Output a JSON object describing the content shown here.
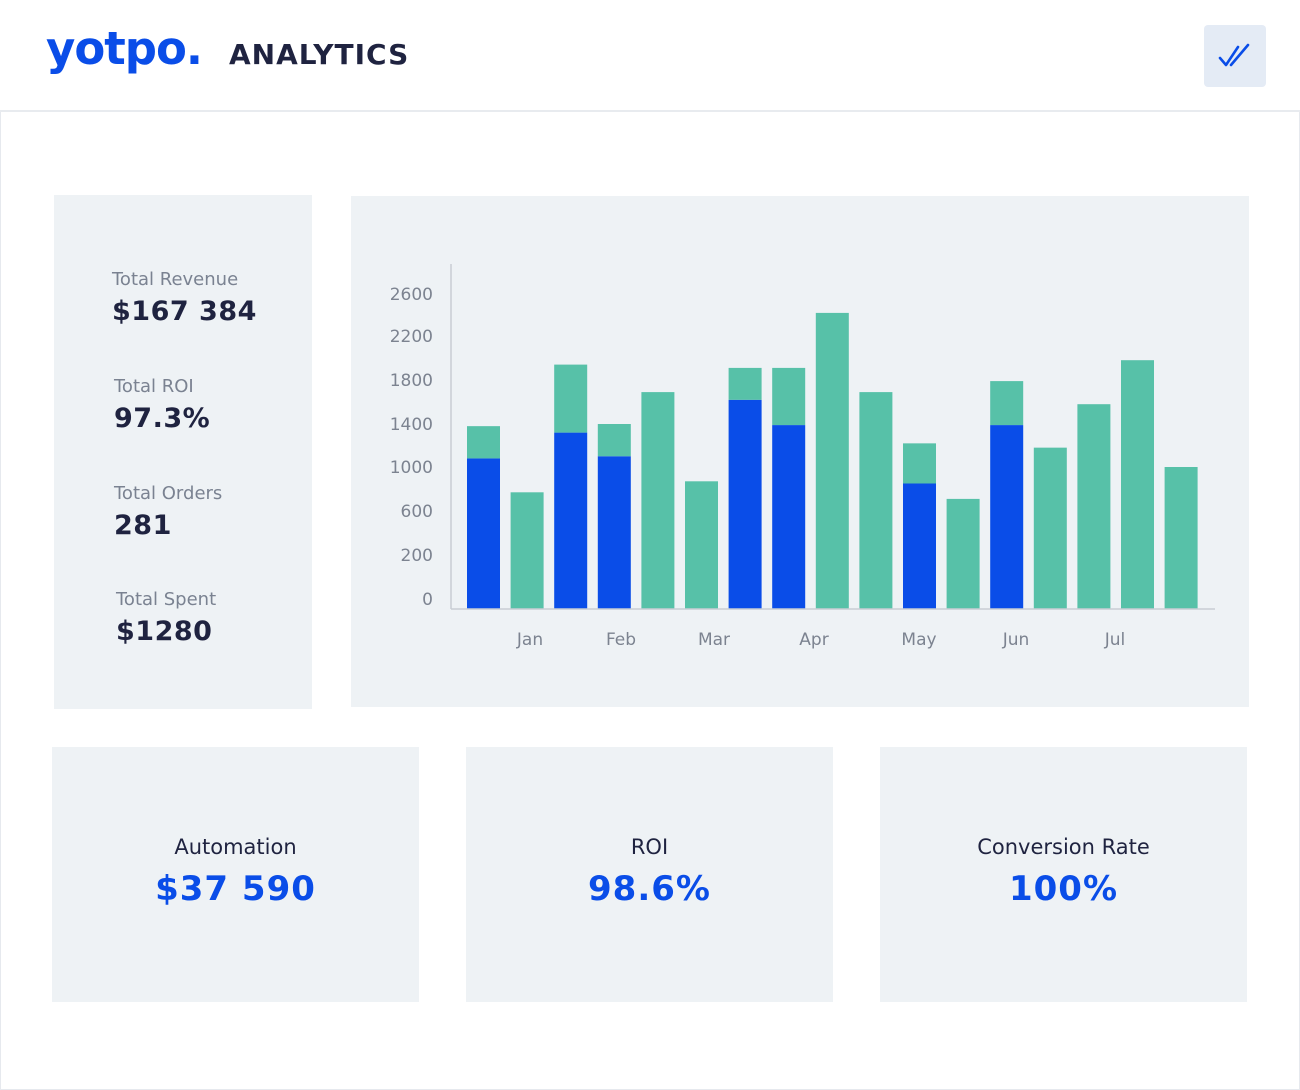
{
  "header": {
    "logo": "yotpo.",
    "title": "ANALYTICS",
    "action_icon": "double-check-icon"
  },
  "stats": [
    {
      "label": "Total Revenue",
      "value": "$167 384"
    },
    {
      "label": "Total ROI",
      "value": "97.3%"
    },
    {
      "label": "Total Orders",
      "value": "281"
    },
    {
      "label": "Total Spent",
      "value": "$1280"
    }
  ],
  "kpis": [
    {
      "label": "Automation",
      "value": "$37 590"
    },
    {
      "label": "ROI",
      "value": "98.6%"
    },
    {
      "label": "Conversion Rate",
      "value": "100%"
    }
  ],
  "colors": {
    "primary": "#0a4de8",
    "secondary": "#57c1a8",
    "panel": "#eef2f5"
  },
  "chart_data": {
    "type": "bar",
    "stacked": true,
    "y_ticks": [
      0,
      200,
      600,
      1000,
      1400,
      1800,
      2200,
      2600
    ],
    "ylim": [
      0,
      2600
    ],
    "x_labels": [
      "Jan",
      "Feb",
      "Mar",
      "Apr",
      "May",
      "Jun",
      "Jul"
    ],
    "series": [
      {
        "color": "#0a4de8",
        "values": [
          1080,
          0,
          1320,
          1100,
          0,
          0,
          1620,
          1390,
          0,
          0,
          850,
          0,
          1390,
          0,
          0,
          0,
          0
        ]
      },
      {
        "color": "#57c1a8",
        "values": [
          300,
          770,
          620,
          300,
          1690,
          870,
          290,
          520,
          2420,
          1690,
          370,
          710,
          400,
          1180,
          1580,
          1980,
          1000
        ]
      }
    ]
  }
}
